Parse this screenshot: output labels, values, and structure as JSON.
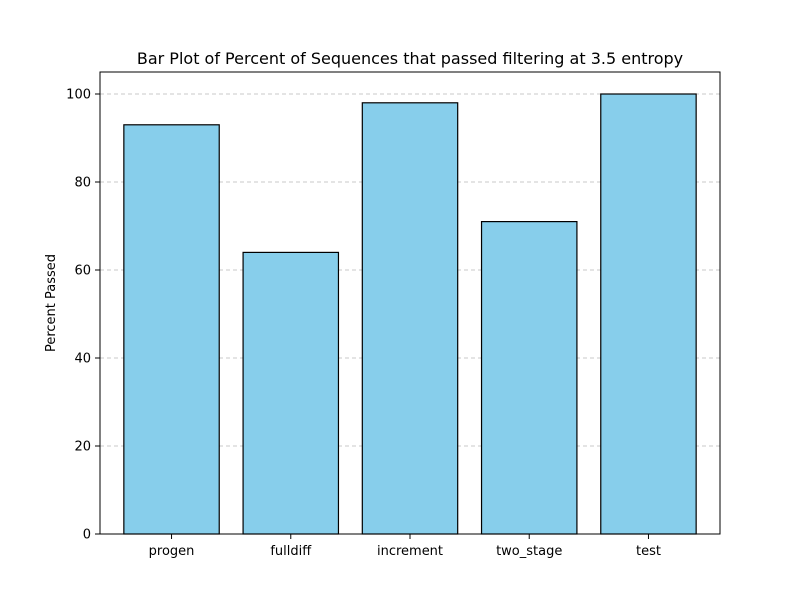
{
  "chart_data": {
    "type": "bar",
    "title": "Bar Plot of Percent of Sequences that passed filtering at 3.5 entropy",
    "xlabel": "",
    "ylabel": "Percent Passed",
    "categories": [
      "progen",
      "fulldiff",
      "increment",
      "two_stage",
      "test"
    ],
    "values": [
      93,
      64,
      98,
      71,
      100
    ],
    "ylim": [
      0,
      105
    ],
    "yticks": [
      0,
      20,
      40,
      60,
      80,
      100
    ],
    "grid": "y-dashed",
    "bar_color": "#87ceeb",
    "bar_edge_color": "#000000",
    "grid_color": "#c8c8c8"
  }
}
